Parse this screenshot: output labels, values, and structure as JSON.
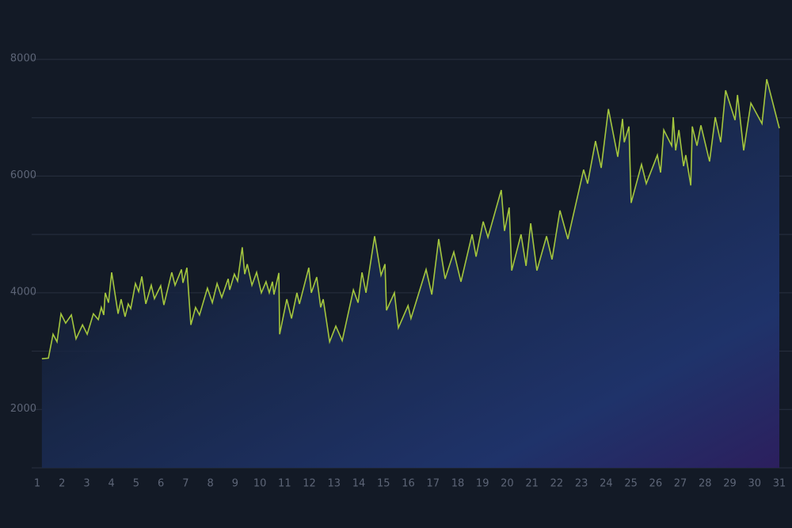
{
  "chart_data": {
    "type": "area",
    "x": [
      1.19,
      1.45,
      1.64,
      1.8,
      1.96,
      2.15,
      2.38,
      2.57,
      2.83,
      3.02,
      3.27,
      3.47,
      3.59,
      3.69,
      3.75,
      3.88,
      4.01,
      4.27,
      4.39,
      4.55,
      4.68,
      4.78,
      4.97,
      5.1,
      5.23,
      5.39,
      5.61,
      5.74,
      5.99,
      6.12,
      6.44,
      6.57,
      6.83,
      6.89,
      7.05,
      7.21,
      7.4,
      7.56,
      7.88,
      8.08,
      8.27,
      8.46,
      8.72,
      8.78,
      8.97,
      9.1,
      9.29,
      9.39,
      9.49,
      9.68,
      9.87,
      10.06,
      10.25,
      10.38,
      10.51,
      10.57,
      10.77,
      10.8,
      11.09,
      11.28,
      11.5,
      11.6,
      11.98,
      12.08,
      12.3,
      12.46,
      12.56,
      12.82,
      13.07,
      13.33,
      13.78,
      13.97,
      14.13,
      14.29,
      14.64,
      14.9,
      15.06,
      15.12,
      15.44,
      15.6,
      15.99,
      16.11,
      16.72,
      16.95,
      17.23,
      17.49,
      17.84,
      18.13,
      18.58,
      18.74,
      19.03,
      19.22,
      19.76,
      19.89,
      20.08,
      20.18,
      20.56,
      20.76,
      20.95,
      21.2,
      21.59,
      21.81,
      22.13,
      22.45,
      23.09,
      23.25,
      23.57,
      23.8,
      24.09,
      24.47,
      24.66,
      24.73,
      24.92,
      25.01,
      25.43,
      25.62,
      26.07,
      26.2,
      26.33,
      26.65,
      26.71,
      26.81,
      26.94,
      27.13,
      27.22,
      27.42,
      27.48,
      27.67,
      27.83,
      28.18,
      28.41,
      28.63,
      28.83,
      29.21,
      29.31,
      29.56,
      29.85,
      30.3,
      30.49,
      31.0
    ],
    "series": [
      {
        "color": "#a4c63e",
        "values": [
          2870,
          2880,
          3290,
          3160,
          3640,
          3480,
          3620,
          3210,
          3450,
          3290,
          3640,
          3540,
          3750,
          3620,
          4000,
          3830,
          4350,
          3640,
          3890,
          3590,
          3810,
          3730,
          4160,
          4020,
          4280,
          3810,
          4130,
          3900,
          4120,
          3790,
          4350,
          4130,
          4400,
          4170,
          4430,
          3450,
          3750,
          3620,
          4080,
          3830,
          4160,
          3920,
          4240,
          4050,
          4320,
          4200,
          4780,
          4320,
          4490,
          4130,
          4350,
          4000,
          4190,
          4000,
          4190,
          3970,
          4340,
          3290,
          3890,
          3560,
          4000,
          3810,
          4430,
          4000,
          4270,
          3750,
          3890,
          3160,
          3430,
          3180,
          4050,
          3830,
          4350,
          4000,
          4970,
          4300,
          4490,
          3700,
          4000,
          3400,
          3780,
          3560,
          4400,
          3970,
          4920,
          4240,
          4700,
          4190,
          5000,
          4620,
          5220,
          4950,
          5760,
          5060,
          5460,
          4380,
          5000,
          4460,
          5190,
          4380,
          4970,
          4570,
          5410,
          4920,
          6110,
          5870,
          6600,
          6140,
          7150,
          6330,
          6980,
          6580,
          6850,
          5540,
          6200,
          5870,
          6360,
          6060,
          6790,
          6520,
          7010,
          6440,
          6790,
          6170,
          6360,
          5840,
          6850,
          6520,
          6870,
          6250,
          7010,
          6580,
          7470,
          6960,
          7390,
          6440,
          7250,
          6900,
          7660,
          6820
        ]
      }
    ],
    "xlim": [
      1,
      31
    ],
    "xticks": [
      1,
      2,
      3,
      4,
      5,
      6,
      7,
      8,
      9,
      10,
      11,
      12,
      13,
      14,
      15,
      16,
      17,
      18,
      19,
      20,
      21,
      22,
      23,
      24,
      25,
      26,
      27,
      28,
      29,
      30,
      31
    ],
    "ylim": [
      1000,
      8000
    ],
    "yticks": [
      2000,
      4000,
      6000,
      8000
    ],
    "yminor_ticks": [
      1000,
      3000,
      5000,
      7000
    ],
    "grid": true
  }
}
